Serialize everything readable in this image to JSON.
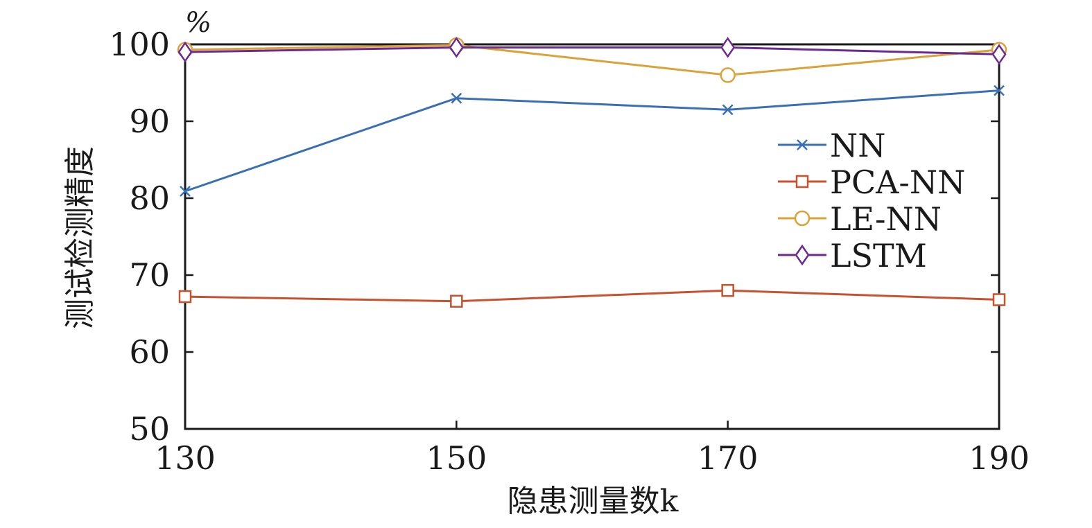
{
  "chart_data": {
    "type": "line",
    "title": "",
    "xlabel": "隐患测量数k",
    "ylabel": "测试检测精度",
    "unit": "%",
    "x": [
      130,
      150,
      170,
      190
    ],
    "xticks": [
      "130",
      "150",
      "170",
      "190"
    ],
    "yticks": [
      "50",
      "60",
      "70",
      "80",
      "90",
      "100"
    ],
    "xlim": [
      130,
      190
    ],
    "ylim": [
      50,
      100
    ],
    "grid": false,
    "legend_position": "right",
    "series": [
      {
        "name": "NN",
        "values": [
          80.9,
          93.0,
          91.5,
          94.0
        ],
        "color": "#3a6fb5",
        "marker": "x"
      },
      {
        "name": "PCA-NN",
        "values": [
          67.2,
          66.6,
          68.0,
          66.8
        ],
        "color": "#c8512e",
        "marker": "square"
      },
      {
        "name": "LE-NN",
        "values": [
          99.3,
          99.9,
          96.0,
          99.3
        ],
        "color": "#dba23a",
        "marker": "circle"
      },
      {
        "name": "LSTM",
        "values": [
          99.0,
          99.6,
          99.6,
          98.7
        ],
        "color": "#6b2a8f",
        "marker": "diamond"
      }
    ]
  }
}
